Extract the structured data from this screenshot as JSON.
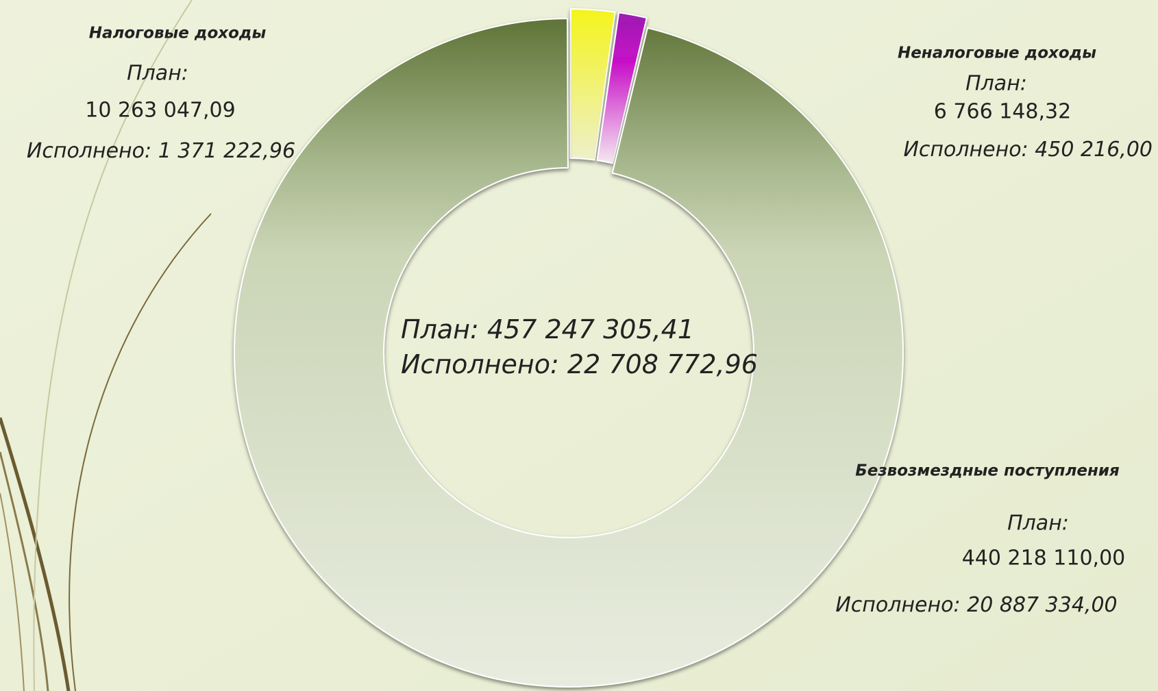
{
  "chart_data": {
    "type": "donut",
    "categories": [
      "Налоговые доходы",
      "Неналоговые доходы",
      "Безвозмездные поступления"
    ],
    "values": [
      10263047.09,
      6766148.32,
      440218110.0
    ],
    "value_labels": [
      "10 263 047,09",
      "6 766 148,32",
      "440 218 110,00"
    ],
    "colors": [
      "#f4f41c",
      "#b010c0",
      "#6d8248"
    ],
    "plan_label": "План:",
    "executed_label": "Исполнено:",
    "executed_value_labels": [
      "1 371 222,96",
      "450 216,00",
      "20 887 334,00"
    ],
    "total_plan_label": "457 247 305,41",
    "total_executed_label": "22 708 772,96"
  }
}
